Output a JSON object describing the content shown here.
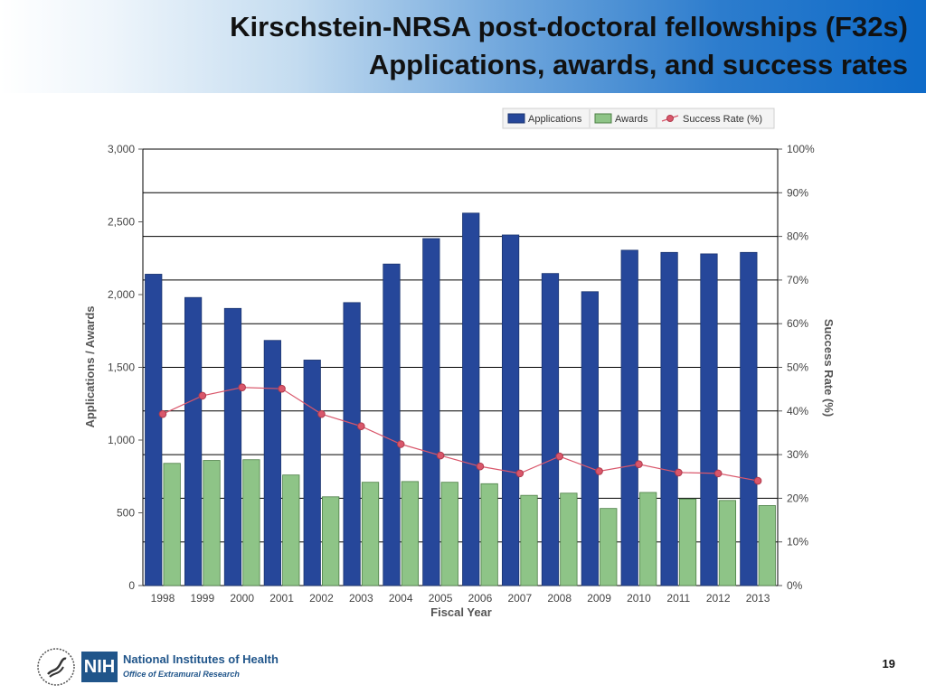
{
  "slide": {
    "title_line1": "Kirschstein-NRSA post-doctoral fellowships (F32s)",
    "title_line2": "Applications, awards, and success rates",
    "page_number": "19",
    "footer": {
      "org_abbrev": "NIH",
      "org_name": "National Institutes of Health",
      "office": "Office of Extramural Research"
    }
  },
  "colors": {
    "applications": "#26479a",
    "awards": "#8ec487",
    "success_rate": "#d9576b",
    "grid": "#000000"
  },
  "chart_data": {
    "type": "bar",
    "title": "",
    "categories": [
      "1998",
      "1999",
      "2000",
      "2001",
      "2002",
      "2003",
      "2004",
      "2005",
      "2006",
      "2007",
      "2008",
      "2009",
      "2010",
      "2011",
      "2012",
      "2013"
    ],
    "series": [
      {
        "name": "Applications",
        "type": "bar",
        "axis": "left",
        "values": [
          2140,
          1980,
          1905,
          1685,
          1550,
          1945,
          2210,
          2385,
          2560,
          2410,
          2145,
          2020,
          2305,
          2290,
          2280,
          2290
        ]
      },
      {
        "name": "Awards",
        "type": "bar",
        "axis": "left",
        "values": [
          840,
          860,
          865,
          760,
          610,
          710,
          715,
          710,
          700,
          620,
          635,
          530,
          640,
          595,
          585,
          550
        ]
      },
      {
        "name": "Success Rate (%)",
        "type": "line",
        "axis": "right",
        "values": [
          39.3,
          43.5,
          45.4,
          45.1,
          39.3,
          36.5,
          32.4,
          29.8,
          27.3,
          25.7,
          29.6,
          26.2,
          27.8,
          25.9,
          25.7,
          24.0
        ]
      }
    ],
    "legend": [
      "Applications",
      "Awards",
      "Success Rate  (%)"
    ],
    "legend_position": "top-right",
    "xlabel": "Fiscal Year",
    "ylabel": "Applications / Awards",
    "y2label": "Success Rate  (%)",
    "ylim": [
      0,
      3000
    ],
    "y2lim": [
      0,
      100
    ],
    "y_ticks": [
      0,
      500,
      1000,
      1500,
      2000,
      2500,
      3000
    ],
    "y_tick_labels": [
      "0",
      "500",
      "1,000",
      "1,500",
      "2,000",
      "2,500",
      "3,000"
    ],
    "y2_ticks": [
      0,
      10,
      20,
      30,
      40,
      50,
      60,
      70,
      80,
      90,
      100
    ],
    "y2_tick_labels": [
      "0%",
      "10%",
      "20%",
      "30%",
      "40%",
      "50%",
      "60%",
      "70%",
      "80%",
      "90%",
      "100%"
    ],
    "grid": true
  }
}
